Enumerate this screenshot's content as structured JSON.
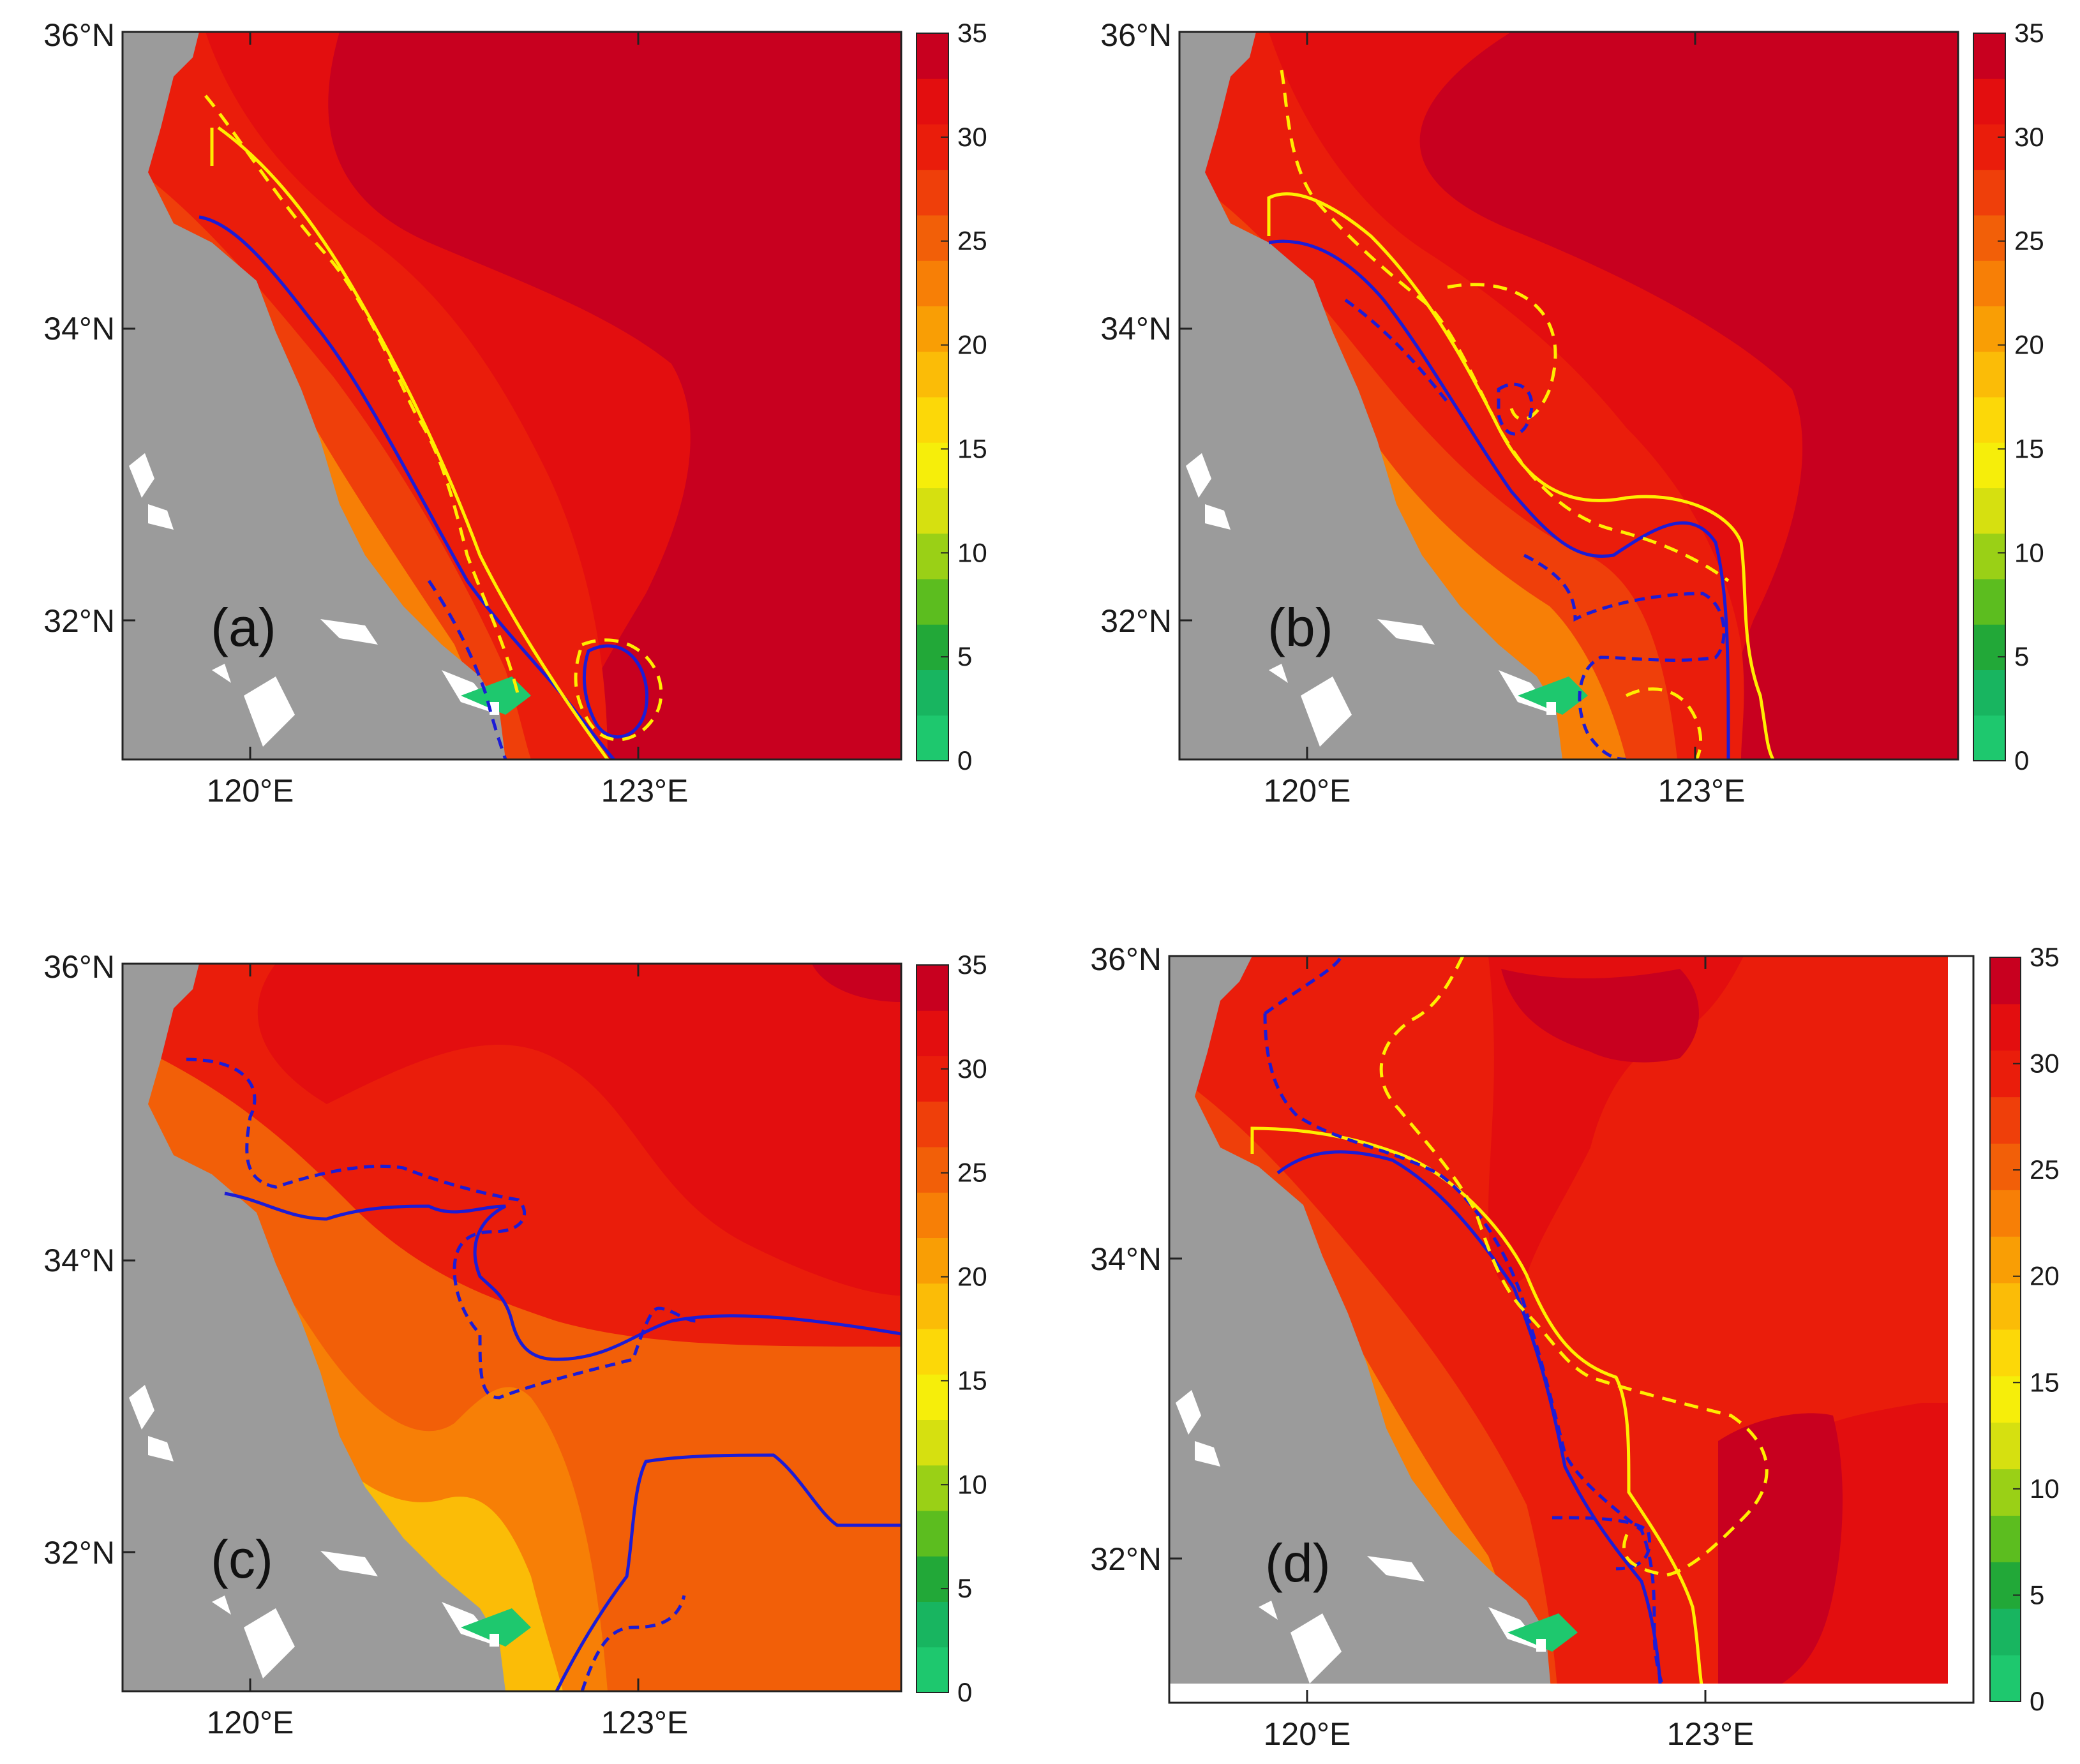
{
  "figure": {
    "colorbar": {
      "ticks": [
        "0",
        "5",
        "10",
        "15",
        "20",
        "25",
        "30",
        "35"
      ],
      "palette": [
        "#1ec86e",
        "#18b560",
        "#22a838",
        "#5cbd1f",
        "#9ad016",
        "#d6e010",
        "#f6ee0a",
        "#fcd808",
        "#fbbc07",
        "#f99e05",
        "#f77f06",
        "#f25f08",
        "#ef3f0a",
        "#ea1d0b",
        "#e30e0f",
        "#c8001f"
      ]
    },
    "colors": {
      "land": "#9b9b9b",
      "inland_water": "#ffffff",
      "contour_blue": "#1c1cd6",
      "contour_yellow": "#ffee00"
    },
    "panels": [
      {
        "label": "(a)",
        "lat_labels": [
          "36°N",
          "34°N",
          "32°N"
        ],
        "lon_labels": [
          "120°E",
          "123°E"
        ]
      },
      {
        "label": "(b)",
        "lat_labels": [
          "36°N",
          "34°N",
          "32°N"
        ],
        "lon_labels": [
          "120°E",
          "123°E"
        ]
      },
      {
        "label": "(c)",
        "lat_labels": [
          "36°N",
          "34°N",
          "32°N"
        ],
        "lon_labels": [
          "120°E",
          "123°E"
        ]
      },
      {
        "label": "(d)",
        "lat_labels": [
          "36°N",
          "34°N",
          "32°N"
        ],
        "lon_labels": [
          "120°E",
          "123°E"
        ]
      }
    ]
  }
}
